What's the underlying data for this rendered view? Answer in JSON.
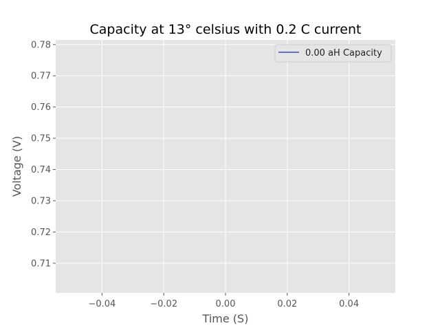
{
  "chart_data": {
    "type": "line",
    "title": "Capacity at 13° celsius with 0.2 C current",
    "xlabel": "Time (S)",
    "ylabel": "Voltage (V)",
    "xlim": [
      -0.055,
      0.055
    ],
    "ylim": [
      0.7005,
      0.7815
    ],
    "x_ticks": [
      -0.04,
      -0.02,
      0.0,
      0.02,
      0.04
    ],
    "x_tick_labels": [
      "−0.04",
      "−0.02",
      "0.00",
      "0.02",
      "0.04"
    ],
    "y_ticks": [
      0.71,
      0.72,
      0.73,
      0.74,
      0.75,
      0.76,
      0.77,
      0.78
    ],
    "y_tick_labels": [
      "0.71",
      "0.72",
      "0.73",
      "0.74",
      "0.75",
      "0.76",
      "0.77",
      "0.78"
    ],
    "grid": true,
    "legend_position": "top-right",
    "series": [
      {
        "name": "0.00 aH Capacity",
        "color": "#3b4cc0",
        "x": [],
        "y": []
      }
    ],
    "colors": {
      "plot_background": "#e5e5e5",
      "grid": "#ffffff",
      "tick_text": "#555555",
      "title_text": "#000000"
    }
  }
}
